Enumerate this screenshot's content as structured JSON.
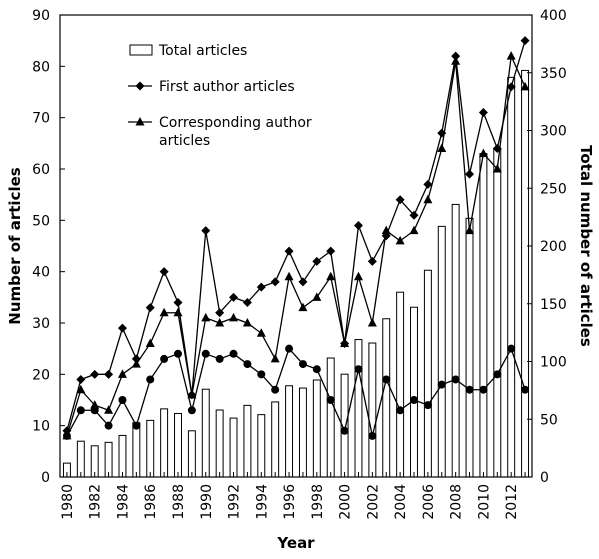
{
  "chart_data": {
    "type": "bar+line",
    "x": [
      1980,
      1981,
      1982,
      1983,
      1984,
      1985,
      1986,
      1987,
      1988,
      1989,
      1990,
      1991,
      1992,
      1993,
      1994,
      1995,
      1996,
      1997,
      1998,
      1999,
      2000,
      2001,
      2002,
      2003,
      2004,
      2005,
      2006,
      2007,
      2008,
      2009,
      2010,
      2011,
      2012,
      2013
    ],
    "x_tick_labels": [
      "1980",
      "1982",
      "1984",
      "1986",
      "1988",
      "1990",
      "1992",
      "1994",
      "1996",
      "1998",
      "2000",
      "2002",
      "2004",
      "2006",
      "2008",
      "2010",
      "2012"
    ],
    "xlabel": "Year",
    "ylabel_left": "Number of articles",
    "ylabel_right": "Total number of articles",
    "ylim_left": [
      0,
      90
    ],
    "ylim_right": [
      0,
      400
    ],
    "yticks_left": [
      "0",
      "10",
      "20",
      "30",
      "40",
      "50",
      "60",
      "70",
      "80",
      "90"
    ],
    "yticks_right": [
      "0",
      "50",
      "100",
      "150",
      "200",
      "250",
      "300",
      "350",
      "400"
    ],
    "legend": {
      "position": "top-left",
      "total": "Total articles",
      "first": "First author articles",
      "corresponding_line1": "Corresponding author",
      "corresponding_line2": "articles"
    },
    "series": [
      {
        "name": "Total articles",
        "type": "bar",
        "axis": "right",
        "values": [
          12,
          31,
          27,
          30,
          36,
          47,
          49,
          59,
          55,
          40,
          76,
          58,
          51,
          62,
          54,
          65,
          79,
          77,
          84,
          103,
          89,
          119,
          116,
          137,
          160,
          147,
          179,
          217,
          236,
          224,
          280,
          284,
          346,
          352
        ]
      },
      {
        "name": "First author articles",
        "type": "line",
        "marker": "diamond",
        "axis": "left",
        "values": [
          9,
          19,
          20,
          20,
          29,
          23,
          33,
          40,
          34,
          16,
          48,
          32,
          35,
          34,
          37,
          38,
          44,
          38,
          42,
          44,
          26,
          49,
          42,
          47,
          54,
          51,
          57,
          67,
          82,
          59,
          71,
          64,
          76,
          85
        ]
      },
      {
        "name": "Corresponding author articles",
        "type": "line",
        "marker": "triangle",
        "axis": "left",
        "values": [
          8,
          17,
          14,
          13,
          20,
          22,
          26,
          32,
          32,
          16,
          31,
          30,
          31,
          30,
          28,
          23,
          39,
          33,
          35,
          39,
          26,
          39,
          30,
          48,
          46,
          48,
          54,
          64,
          81,
          48,
          63,
          60,
          82,
          76
        ]
      },
      {
        "name": "",
        "type": "line",
        "marker": "circle",
        "axis": "left",
        "values": [
          8,
          13,
          13,
          10,
          15,
          10,
          19,
          23,
          24,
          13,
          24,
          23,
          24,
          22,
          20,
          17,
          25,
          22,
          21,
          15,
          9,
          21,
          8,
          19,
          13,
          15,
          14,
          18,
          19,
          17,
          17,
          20,
          25,
          17
        ]
      }
    ]
  }
}
